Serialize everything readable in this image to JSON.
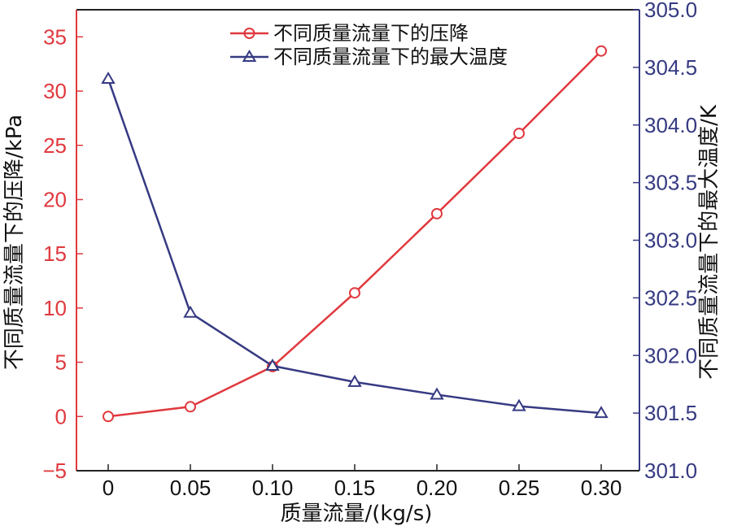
{
  "chart_data": {
    "type": "line",
    "x": [
      0,
      0.05,
      0.1,
      0.15,
      0.2,
      0.25,
      0.3
    ],
    "x_tick_labels": [
      "0",
      "0.05",
      "0.10",
      "0.15",
      "0.20",
      "0.25",
      "0.30"
    ],
    "xlabel": "质量流量/(kg/s)",
    "y_left": {
      "label": "不同质量流量下的压降/kPa",
      "lim": [
        -5,
        37.5
      ],
      "ticks": [
        -5,
        0,
        5,
        10,
        15,
        20,
        25,
        30,
        35
      ],
      "tick_labels": [
        "−5",
        "0",
        "5",
        "10",
        "15",
        "20",
        "25",
        "30",
        "35"
      ],
      "color": "#e0393e"
    },
    "y_right": {
      "label": "不同质量流量下的最大温度/K",
      "lim": [
        301.0,
        305.0
      ],
      "ticks": [
        301.0,
        301.5,
        302.0,
        302.5,
        303.0,
        303.5,
        304.0,
        304.5,
        305.0
      ],
      "tick_labels": [
        "301.0",
        "301.5",
        "302.0",
        "302.5",
        "303.0",
        "303.5",
        "304.0",
        "304.5",
        "305.0"
      ],
      "color": "#363a82"
    },
    "series": [
      {
        "name": "不同质量流量下的压降",
        "axis": "left",
        "marker": "circle",
        "color": "#e0393e",
        "values": [
          0.0,
          0.9,
          4.6,
          11.4,
          18.7,
          26.1,
          33.7
        ]
      },
      {
        "name": "不同质量流量下的最大温度",
        "axis": "right",
        "marker": "triangle",
        "color": "#363a82",
        "values": [
          304.4,
          302.37,
          301.91,
          301.77,
          301.66,
          301.56,
          301.5
        ]
      }
    ],
    "grid": false,
    "legend_position": "top-center"
  }
}
